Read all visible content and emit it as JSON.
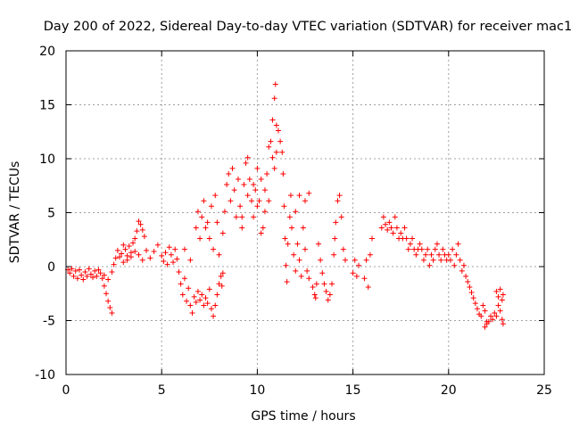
{
  "chart_data": {
    "type": "scatter",
    "title": "Day 200 of 2022, Sidereal Day-to-day VTEC variation (SDTVAR) for receiver mac1",
    "xlabel": "GPS time / hours",
    "ylabel": "SDTVAR / TECUs",
    "xlim": [
      0,
      25
    ],
    "ylim": [
      -10,
      20
    ],
    "x_ticks": [
      0,
      5,
      10,
      15,
      20,
      25
    ],
    "y_ticks": [
      -10,
      -5,
      0,
      5,
      10,
      15,
      20
    ],
    "grid": true,
    "marker": "+",
    "series": [
      {
        "name": "SDTVAR",
        "color": "#ff0000",
        "points": [
          [
            0.1,
            -0.3
          ],
          [
            0.2,
            -0.6
          ],
          [
            0.3,
            -0.2
          ],
          [
            0.4,
            -0.9
          ],
          [
            0.5,
            -0.4
          ],
          [
            0.6,
            -1.1
          ],
          [
            0.7,
            -0.3
          ],
          [
            0.8,
            -0.8
          ],
          [
            0.9,
            -1.2
          ],
          [
            1.0,
            -0.5
          ],
          [
            1.1,
            -0.9
          ],
          [
            1.2,
            -0.2
          ],
          [
            1.3,
            -0.7
          ],
          [
            1.4,
            -1.0
          ],
          [
            1.5,
            -0.4
          ],
          [
            1.6,
            -0.9
          ],
          [
            1.7,
            -0.3
          ],
          [
            1.8,
            -0.6
          ],
          [
            1.9,
            -1.1
          ],
          [
            2.0,
            -1.8
          ],
          [
            2.0,
            -0.8
          ],
          [
            2.1,
            -2.5
          ],
          [
            2.2,
            -3.2
          ],
          [
            2.3,
            -3.8
          ],
          [
            2.4,
            -4.3
          ],
          [
            2.2,
            -1.2
          ],
          [
            2.4,
            -0.5
          ],
          [
            2.5,
            0.2
          ],
          [
            2.6,
            0.8
          ],
          [
            2.7,
            1.5
          ],
          [
            2.8,
            0.9
          ],
          [
            2.9,
            1.2
          ],
          [
            3.0,
            0.4
          ],
          [
            3.1,
            1.6
          ],
          [
            3.2,
            1.0
          ],
          [
            3.3,
            1.9
          ],
          [
            3.4,
            1.3
          ],
          [
            3.5,
            2.2
          ],
          [
            3.6,
            2.6
          ],
          [
            3.7,
            3.3
          ],
          [
            3.8,
            4.2
          ],
          [
            3.9,
            3.9
          ],
          [
            4.0,
            3.4
          ],
          [
            4.1,
            2.8
          ],
          [
            3.0,
            2.0
          ],
          [
            3.2,
            0.6
          ],
          [
            3.4,
            0.9
          ],
          [
            3.6,
            1.4
          ],
          [
            3.8,
            1.1
          ],
          [
            4.0,
            0.6
          ],
          [
            4.2,
            1.5
          ],
          [
            4.4,
            0.8
          ],
          [
            4.6,
            1.4
          ],
          [
            4.8,
            2.0
          ],
          [
            5.0,
            1.0
          ],
          [
            5.1,
            0.5
          ],
          [
            5.2,
            1.3
          ],
          [
            5.3,
            0.2
          ],
          [
            5.4,
            1.8
          ],
          [
            5.5,
            1.1
          ],
          [
            5.6,
            0.4
          ],
          [
            5.7,
            1.6
          ],
          [
            5.8,
            0.7
          ],
          [
            5.9,
            -0.5
          ],
          [
            6.0,
            -1.6
          ],
          [
            6.1,
            -2.6
          ],
          [
            6.2,
            -1.1
          ],
          [
            6.3,
            -3.2
          ],
          [
            6.4,
            -2.0
          ],
          [
            6.5,
            -3.6
          ],
          [
            6.6,
            -4.3
          ],
          [
            6.7,
            -2.8
          ],
          [
            6.8,
            -3.3
          ],
          [
            6.9,
            -2.3
          ],
          [
            7.0,
            -3.1
          ],
          [
            7.1,
            -2.6
          ],
          [
            7.2,
            -3.6
          ],
          [
            7.3,
            -2.9
          ],
          [
            7.4,
            -3.4
          ],
          [
            7.5,
            -2.1
          ],
          [
            7.6,
            -3.9
          ],
          [
            7.7,
            -4.6
          ],
          [
            7.8,
            -3.6
          ],
          [
            7.9,
            -2.6
          ],
          [
            8.0,
            -1.6
          ],
          [
            6.2,
            1.6
          ],
          [
            6.5,
            0.6
          ],
          [
            6.8,
            3.6
          ],
          [
            6.9,
            5.1
          ],
          [
            7.0,
            2.6
          ],
          [
            7.1,
            4.6
          ],
          [
            7.2,
            6.1
          ],
          [
            7.3,
            3.6
          ],
          [
            7.4,
            4.1
          ],
          [
            7.5,
            2.6
          ],
          [
            7.6,
            5.6
          ],
          [
            7.7,
            1.6
          ],
          [
            7.8,
            6.6
          ],
          [
            7.9,
            4.1
          ],
          [
            8.0,
            1.1
          ],
          [
            8.1,
            -0.9
          ],
          [
            8.15,
            -1.8
          ],
          [
            8.2,
            -0.6
          ],
          [
            8.2,
            3.1
          ],
          [
            8.3,
            5.1
          ],
          [
            8.4,
            7.6
          ],
          [
            8.5,
            8.6
          ],
          [
            8.6,
            6.1
          ],
          [
            8.7,
            9.1
          ],
          [
            8.8,
            7.1
          ],
          [
            8.9,
            4.6
          ],
          [
            9.0,
            8.1
          ],
          [
            9.1,
            5.6
          ],
          [
            9.2,
            3.6
          ],
          [
            9.3,
            7.6
          ],
          [
            9.4,
            9.6
          ],
          [
            9.5,
            10.1
          ],
          [
            9.6,
            8.1
          ],
          [
            9.7,
            6.1
          ],
          [
            9.8,
            4.6
          ],
          [
            9.9,
            7.1
          ],
          [
            10.0,
            9.1
          ],
          [
            10.1,
            6.1
          ],
          [
            10.2,
            8.1
          ],
          [
            10.3,
            3.6
          ],
          [
            10.4,
            5.1
          ],
          [
            10.5,
            8.6
          ],
          [
            10.6,
            11.1
          ],
          [
            10.7,
            11.6
          ],
          [
            10.8,
            10.1
          ],
          [
            9.2,
            4.6
          ],
          [
            9.5,
            6.6
          ],
          [
            9.8,
            7.6
          ],
          [
            10.0,
            5.6
          ],
          [
            10.2,
            3.1
          ],
          [
            10.4,
            7.1
          ],
          [
            10.6,
            6.1
          ],
          [
            10.9,
            9.1
          ],
          [
            11.0,
            10.6
          ],
          [
            11.1,
            12.6
          ],
          [
            10.8,
            13.6
          ],
          [
            10.9,
            15.6
          ],
          [
            10.95,
            16.9
          ],
          [
            11.0,
            13.1
          ],
          [
            11.2,
            11.6
          ],
          [
            11.3,
            10.6
          ],
          [
            11.35,
            8.6
          ],
          [
            11.4,
            5.6
          ],
          [
            11.45,
            2.6
          ],
          [
            11.5,
            0.1
          ],
          [
            11.55,
            -1.4
          ],
          [
            11.6,
            2.1
          ],
          [
            11.7,
            4.6
          ],
          [
            11.75,
            6.6
          ],
          [
            11.8,
            3.6
          ],
          [
            11.9,
            1.1
          ],
          [
            12.0,
            -0.4
          ],
          [
            12.1,
            2.1
          ],
          [
            12.2,
            0.6
          ],
          [
            12.3,
            -0.9
          ],
          [
            12.4,
            3.6
          ],
          [
            12.5,
            1.6
          ],
          [
            12.6,
            -0.4
          ],
          [
            12.7,
            -1.1
          ],
          [
            12.0,
            5.1
          ],
          [
            12.2,
            6.6
          ],
          [
            12.5,
            6.1
          ],
          [
            12.7,
            6.8
          ],
          [
            12.9,
            -1.9
          ],
          [
            13.0,
            -2.6
          ],
          [
            13.05,
            -2.9
          ],
          [
            13.1,
            -1.6
          ],
          [
            13.2,
            2.1
          ],
          [
            13.3,
            0.6
          ],
          [
            13.4,
            -0.6
          ],
          [
            13.5,
            -1.6
          ],
          [
            13.6,
            -2.3
          ],
          [
            13.7,
            -3.1
          ],
          [
            13.8,
            -2.6
          ],
          [
            13.9,
            -1.6
          ],
          [
            14.0,
            1.1
          ],
          [
            14.05,
            2.6
          ],
          [
            14.1,
            4.1
          ],
          [
            14.2,
            6.1
          ],
          [
            14.3,
            6.6
          ],
          [
            14.4,
            4.6
          ],
          [
            14.5,
            1.6
          ],
          [
            14.6,
            0.6
          ],
          [
            15.0,
            -0.6
          ],
          [
            15.1,
            0.6
          ],
          [
            15.2,
            -0.9
          ],
          [
            15.3,
            0.1
          ],
          [
            15.6,
            -1.1
          ],
          [
            15.7,
            0.6
          ],
          [
            15.8,
            -1.9
          ],
          [
            15.9,
            1.1
          ],
          [
            16.0,
            2.6
          ],
          [
            16.5,
            3.6
          ],
          [
            16.6,
            4.6
          ],
          [
            16.7,
            3.9
          ],
          [
            16.8,
            3.4
          ],
          [
            16.9,
            4.1
          ],
          [
            17.0,
            3.6
          ],
          [
            17.1,
            3.1
          ],
          [
            17.2,
            4.6
          ],
          [
            17.3,
            3.6
          ],
          [
            17.4,
            2.6
          ],
          [
            17.5,
            3.1
          ],
          [
            17.6,
            2.6
          ],
          [
            17.7,
            3.6
          ],
          [
            17.8,
            2.6
          ],
          [
            17.9,
            1.6
          ],
          [
            18.0,
            2.1
          ],
          [
            18.1,
            2.6
          ],
          [
            18.2,
            1.6
          ],
          [
            18.3,
            1.1
          ],
          [
            18.4,
            1.6
          ],
          [
            18.5,
            2.1
          ],
          [
            18.6,
            1.6
          ],
          [
            18.7,
            0.6
          ],
          [
            18.8,
            1.1
          ],
          [
            18.9,
            1.6
          ],
          [
            19.0,
            0.1
          ],
          [
            19.1,
            1.1
          ],
          [
            19.2,
            0.6
          ],
          [
            19.3,
            1.6
          ],
          [
            19.4,
            2.1
          ],
          [
            19.5,
            1.1
          ],
          [
            19.6,
            0.6
          ],
          [
            19.7,
            1.6
          ],
          [
            19.8,
            1.1
          ],
          [
            19.9,
            0.6
          ],
          [
            20.0,
            1.1
          ],
          [
            20.1,
            0.6
          ],
          [
            20.2,
            1.6
          ],
          [
            20.3,
            0.1
          ],
          [
            20.4,
            1.1
          ],
          [
            20.5,
            2.1
          ],
          [
            20.6,
            0.6
          ],
          [
            20.7,
            -0.4
          ],
          [
            20.8,
            0.1
          ],
          [
            20.9,
            -0.9
          ],
          [
            21.0,
            -1.4
          ],
          [
            21.1,
            -1.9
          ],
          [
            21.2,
            -2.4
          ],
          [
            21.3,
            -2.9
          ],
          [
            21.4,
            -3.4
          ],
          [
            21.5,
            -3.9
          ],
          [
            21.6,
            -4.4
          ],
          [
            21.7,
            -4.6
          ],
          [
            21.8,
            -3.6
          ],
          [
            21.9,
            -4.1
          ],
          [
            22.0,
            -5.1
          ],
          [
            21.9,
            -5.6
          ],
          [
            22.0,
            -5.3
          ],
          [
            22.1,
            -5.1
          ],
          [
            22.2,
            -4.6
          ],
          [
            22.3,
            -4.9
          ],
          [
            22.4,
            -4.3
          ],
          [
            22.5,
            -4.6
          ],
          [
            22.6,
            -3.6
          ],
          [
            22.7,
            -4.1
          ],
          [
            22.8,
            -3.1
          ],
          [
            22.85,
            -2.6
          ],
          [
            22.5,
            -2.3
          ],
          [
            22.6,
            -2.8
          ],
          [
            22.7,
            -2.1
          ],
          [
            22.8,
            -4.9
          ],
          [
            22.85,
            -5.3
          ]
        ]
      }
    ]
  }
}
